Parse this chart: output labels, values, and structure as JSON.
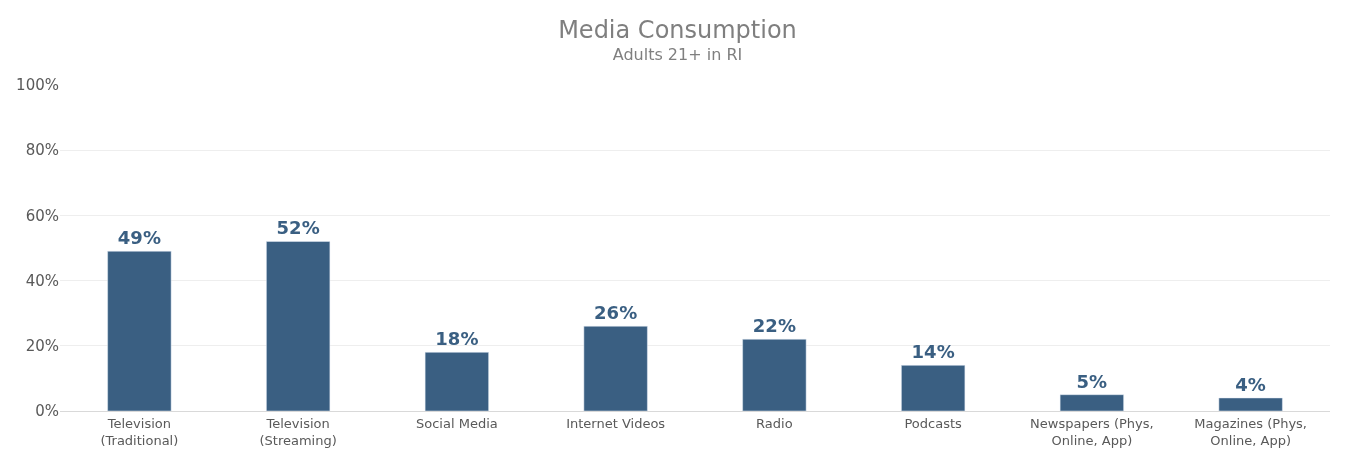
{
  "chart_data": {
    "type": "bar",
    "title": "Media Consumption",
    "subtitle": "Adults 21+ in RI",
    "categories": [
      "Television (Traditional)",
      "Television (Streaming)",
      "Social Media",
      "Internet Videos",
      "Radio",
      "Podcasts",
      "Newspapers (Phys, Online, App)",
      "Magazines (Phys, Online, App)"
    ],
    "values": [
      49,
      52,
      18,
      26,
      22,
      14,
      5,
      4
    ],
    "value_labels": [
      "49%",
      "52%",
      "18%",
      "26%",
      "22%",
      "14%",
      "5%",
      "4%"
    ],
    "color": "#3a5f82",
    "ylim": [
      0,
      100
    ],
    "yticks": [
      {
        "value": 0,
        "label": "0%"
      },
      {
        "value": 20,
        "label": "20%"
      },
      {
        "value": 40,
        "label": "40%"
      },
      {
        "value": 60,
        "label": "60%"
      },
      {
        "value": 80,
        "label": "80%"
      },
      {
        "value": 100,
        "label": "100%"
      }
    ],
    "grid": "y",
    "legend": false
  }
}
